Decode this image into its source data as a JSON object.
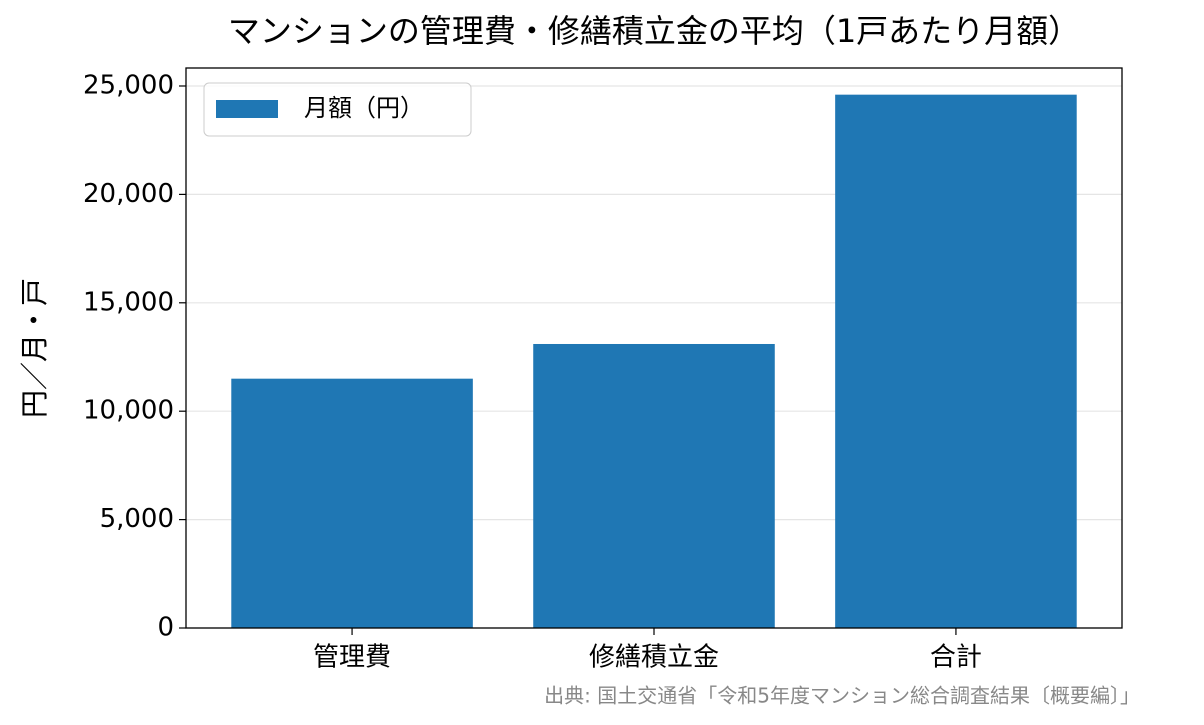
{
  "chart_data": {
    "type": "bar",
    "title": "マンションの管理費・修繕積立金の平均（1戸あたり月額）",
    "y_label": "円／月・戸",
    "source": "出典: 国土交通省「令和5年度マンション総合調査結果〔概要編〕」",
    "categories": [
      "管理費",
      "修繕積立金",
      "合計"
    ],
    "series": [
      {
        "name": "月額（円）",
        "color": "#1f77b4",
        "values": [
          11500,
          13100,
          24600
        ]
      }
    ],
    "ylim": [
      0,
      25830
    ],
    "yticks": [
      0,
      {
        "value": 5000,
        "label": "5,000"
      },
      {
        "value": 10000,
        "label": "10,000"
      },
      {
        "value": 15000,
        "label": "15,000"
      },
      {
        "value": 20000,
        "label": "20,000"
      },
      {
        "value": 25000,
        "label": "25,000"
      }
    ],
    "grid": true,
    "legend": "upper-left"
  }
}
